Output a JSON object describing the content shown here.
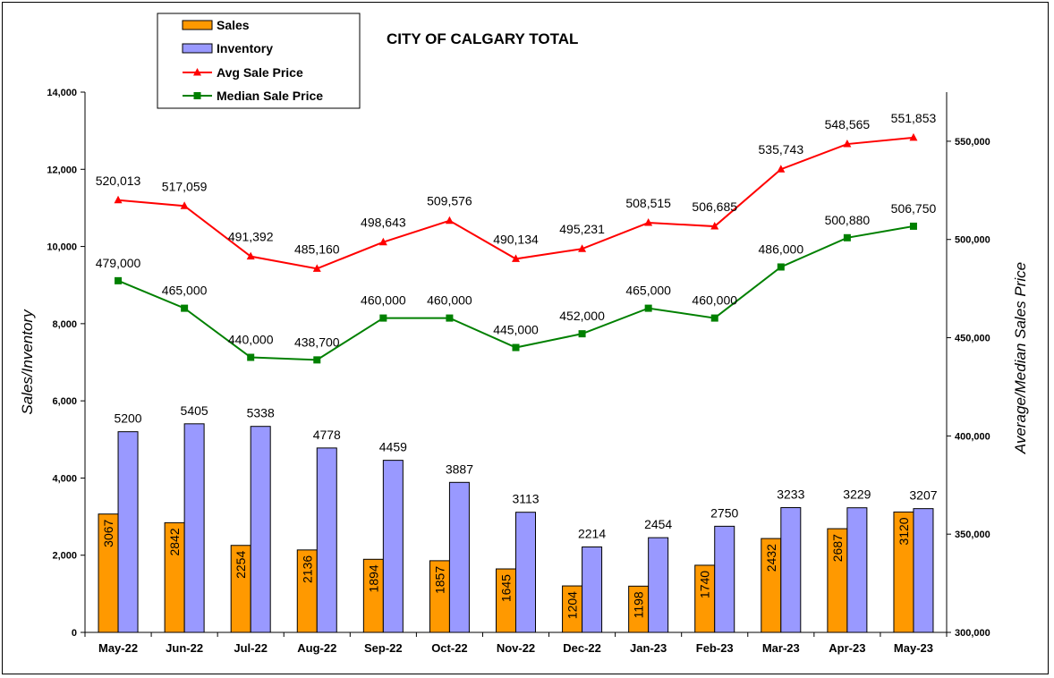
{
  "chart_data": {
    "type": "bar",
    "title": "CITY OF CALGARY TOTAL",
    "categories": [
      "May-22",
      "Jun-22",
      "Jul-22",
      "Aug-22",
      "Sep-22",
      "Oct-22",
      "Nov-22",
      "Dec-22",
      "Jan-23",
      "Feb-23",
      "Mar-23",
      "Apr-23",
      "May-23"
    ],
    "ylabel": "Sales/Inventory",
    "y2label": "Average/Median Sales Price",
    "ylim": [
      0,
      14000
    ],
    "y2lim": [
      300000,
      575000
    ],
    "yticks": [
      "0",
      "2,000",
      "4,000",
      "6,000",
      "8,000",
      "10,000",
      "12,000",
      "14,000"
    ],
    "y2ticks": [
      "300,000",
      "350,000",
      "400,000",
      "450,000",
      "500,000",
      "550,000"
    ],
    "legend_position": "top-left",
    "grid": false,
    "series": [
      {
        "name": "Sales",
        "type": "bar",
        "axis": "left",
        "color": "#FF9900",
        "values": [
          3067,
          2842,
          2254,
          2136,
          1894,
          1857,
          1645,
          1204,
          1198,
          1740,
          2432,
          2687,
          3120
        ],
        "labels": [
          "3067",
          "2842",
          "2254",
          "2136",
          "1894",
          "1857",
          "1645",
          "1204",
          "1198",
          "1740",
          "2432",
          "2687",
          "3120"
        ]
      },
      {
        "name": "Inventory",
        "type": "bar",
        "axis": "left",
        "color": "#9999FF",
        "values": [
          5200,
          5405,
          5338,
          4778,
          4459,
          3887,
          3113,
          2214,
          2454,
          2750,
          3233,
          3229,
          3207
        ],
        "labels": [
          "5200",
          "5405",
          "5338",
          "4778",
          "4459",
          "3887",
          "3113",
          "2214",
          "2454",
          "2750",
          "3233",
          "3229",
          "3207"
        ]
      },
      {
        "name": "Avg Sale Price",
        "type": "line",
        "axis": "right",
        "color": "#FF0000",
        "marker": "triangle",
        "values": [
          520013,
          517059,
          491392,
          485160,
          498643,
          509576,
          490134,
          495231,
          508515,
          506685,
          535743,
          548565,
          551853
        ],
        "labels": [
          "520,013",
          "517,059",
          "491,392",
          "485,160",
          "498,643",
          "509,576",
          "490,134",
          "495,231",
          "508,515",
          "506,685",
          "535,743",
          "548,565",
          "551,853"
        ]
      },
      {
        "name": "Median Sale Price",
        "type": "line",
        "axis": "right",
        "color": "#008000",
        "marker": "square",
        "values": [
          479000,
          465000,
          440000,
          438700,
          460000,
          460000,
          445000,
          452000,
          465000,
          460000,
          486000,
          500880,
          506750
        ],
        "labels": [
          "479,000",
          "465,000",
          "440,000",
          "438,700",
          "460,000",
          "460,000",
          "445,000",
          "452,000",
          "465,000",
          "460,000",
          "486,000",
          "500,880",
          "506,750"
        ]
      }
    ]
  }
}
